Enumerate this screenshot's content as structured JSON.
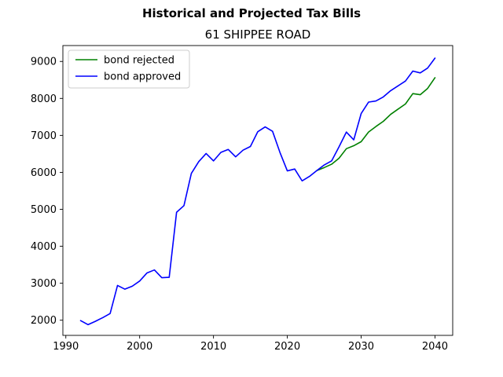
{
  "chart_data": {
    "type": "line",
    "title": "Historical and Projected Tax Bills",
    "subtitle": "61 SHIPPEE ROAD",
    "xlabel": "",
    "ylabel": "",
    "xlim": [
      1989.6,
      2042.4
    ],
    "ylim": [
      1590,
      9430
    ],
    "xticks": [
      1990,
      2000,
      2010,
      2020,
      2030,
      2040
    ],
    "yticks": [
      2000,
      3000,
      4000,
      5000,
      6000,
      7000,
      8000,
      9000
    ],
    "grid": false,
    "legend_position": "upper-left",
    "series": [
      {
        "name": "bond rejected",
        "color": "#008000",
        "x": [
          2024,
          2025,
          2026,
          2027,
          2028,
          2029,
          2030,
          2031,
          2032,
          2033,
          2034,
          2035,
          2036,
          2037,
          2038,
          2039,
          2040
        ],
        "y": [
          6050,
          6130,
          6220,
          6380,
          6640,
          6720,
          6830,
          7090,
          7240,
          7380,
          7570,
          7710,
          7850,
          8130,
          8100,
          8270,
          8560
        ]
      },
      {
        "name": "bond approved",
        "color": "#0000ff",
        "x": [
          1992,
          1993,
          1994,
          1995,
          1996,
          1997,
          1998,
          1999,
          2000,
          2001,
          2002,
          2003,
          2004,
          2005,
          2006,
          2007,
          2008,
          2009,
          2010,
          2011,
          2012,
          2013,
          2014,
          2015,
          2016,
          2017,
          2018,
          2019,
          2020,
          2021,
          2022,
          2023,
          2024,
          2025,
          2026,
          2027,
          2028,
          2029,
          2030,
          2031,
          2032,
          2033,
          2034,
          2035,
          2036,
          2037,
          2038,
          2039,
          2040
        ],
        "y": [
          1990,
          1880,
          1970,
          2070,
          2180,
          2940,
          2840,
          2920,
          3060,
          3280,
          3360,
          3150,
          3160,
          4920,
          5100,
          5970,
          6290,
          6510,
          6310,
          6540,
          6620,
          6420,
          6600,
          6700,
          7100,
          7230,
          7110,
          6540,
          6040,
          6090,
          5770,
          5890,
          6050,
          6200,
          6310,
          6690,
          7090,
          6880,
          7590,
          7900,
          7930,
          8040,
          8210,
          8340,
          8470,
          8740,
          8690,
          8820,
          9090
        ]
      }
    ]
  }
}
